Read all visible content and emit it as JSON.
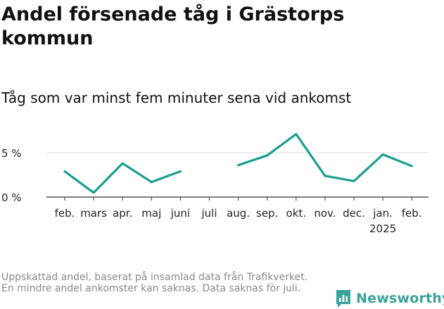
{
  "header": {
    "title": "Andel försenade tåg i Grästorps kommun",
    "subtitle": "Tåg som var minst fem minuter sena vid ankomst"
  },
  "footer": {
    "note": "Uppskattad andel, baserat på insamlad data från Trafikverket. En mindre andel ankomster kan saknas. Data saknas för juli.",
    "brand": "Newsworthy"
  },
  "colors": {
    "line": "#1a9e8f",
    "grid": "#dddddd",
    "axis": "#333333",
    "brand": "#3aa39a"
  },
  "chart_data": {
    "type": "line",
    "categories": [
      "feb.",
      "mars",
      "apr.",
      "maj",
      "juni",
      "juli",
      "aug.",
      "sep.",
      "okt.",
      "nov.",
      "dec.",
      "jan.",
      "feb."
    ],
    "year_labels": {
      "11": "2025"
    },
    "series": [
      {
        "values": [
          2.9,
          0.5,
          3.8,
          1.7,
          2.9,
          null,
          3.6,
          4.7,
          7.1,
          2.4,
          1.8,
          4.8,
          3.5
        ]
      }
    ],
    "yticks": [
      0,
      5
    ],
    "ytick_labels": [
      "0 %",
      "5 %"
    ],
    "ylim": [
      0,
      7.5
    ],
    "grid": true,
    "xlabel": "",
    "ylabel": ""
  }
}
